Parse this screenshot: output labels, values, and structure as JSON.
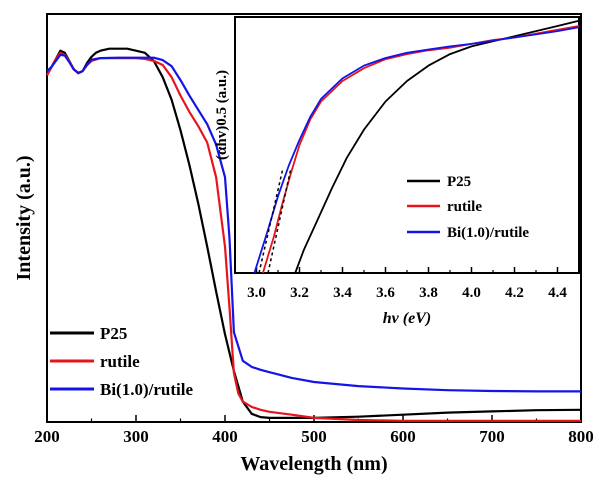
{
  "chart_data": [
    {
      "type": "line",
      "xlabel": "Wavelength (nm)",
      "ylabel": "Intensity (a.u.)",
      "xlim": [
        200,
        800
      ],
      "ylim": [
        0,
        1
      ],
      "xticks": [
        200,
        300,
        400,
        500,
        600,
        700,
        800
      ],
      "grid": false,
      "legend_position": "bottom-left",
      "series": [
        {
          "name": "P25",
          "color": "#000000",
          "points": [
            [
              200,
              0.85
            ],
            [
              205,
              0.87
            ],
            [
              210,
              0.89
            ],
            [
              215,
              0.91
            ],
            [
              220,
              0.905
            ],
            [
              225,
              0.885
            ],
            [
              230,
              0.865
            ],
            [
              235,
              0.855
            ],
            [
              240,
              0.86
            ],
            [
              245,
              0.88
            ],
            [
              250,
              0.895
            ],
            [
              255,
              0.905
            ],
            [
              260,
              0.91
            ],
            [
              270,
              0.915
            ],
            [
              280,
              0.915
            ],
            [
              290,
              0.915
            ],
            [
              300,
              0.91
            ],
            [
              310,
              0.905
            ],
            [
              320,
              0.885
            ],
            [
              330,
              0.845
            ],
            [
              340,
              0.79
            ],
            [
              350,
              0.715
            ],
            [
              360,
              0.63
            ],
            [
              370,
              0.535
            ],
            [
              380,
              0.43
            ],
            [
              390,
              0.32
            ],
            [
              400,
              0.215
            ],
            [
              410,
              0.125
            ],
            [
              420,
              0.05
            ],
            [
              430,
              0.02
            ],
            [
              440,
              0.012
            ],
            [
              450,
              0.01
            ],
            [
              470,
              0.01
            ],
            [
              500,
              0.01
            ],
            [
              550,
              0.013
            ],
            [
              600,
              0.018
            ],
            [
              650,
              0.023
            ],
            [
              700,
              0.026
            ],
            [
              750,
              0.029
            ],
            [
              800,
              0.03
            ]
          ]
        },
        {
          "name": "rutile",
          "color": "#e8141c",
          "points": [
            [
              200,
              0.85
            ],
            [
              205,
              0.87
            ],
            [
              210,
              0.89
            ],
            [
              215,
              0.905
            ],
            [
              220,
              0.9
            ],
            [
              225,
              0.885
            ],
            [
              230,
              0.865
            ],
            [
              235,
              0.855
            ],
            [
              240,
              0.86
            ],
            [
              245,
              0.875
            ],
            [
              250,
              0.885
            ],
            [
              260,
              0.892
            ],
            [
              280,
              0.892
            ],
            [
              300,
              0.892
            ],
            [
              310,
              0.89
            ],
            [
              320,
              0.885
            ],
            [
              330,
              0.875
            ],
            [
              340,
              0.845
            ],
            [
              350,
              0.8
            ],
            [
              360,
              0.76
            ],
            [
              370,
              0.725
            ],
            [
              380,
              0.685
            ],
            [
              390,
              0.6
            ],
            [
              400,
              0.43
            ],
            [
              405,
              0.28
            ],
            [
              410,
              0.12
            ],
            [
              415,
              0.07
            ],
            [
              420,
              0.05
            ],
            [
              430,
              0.037
            ],
            [
              440,
              0.03
            ],
            [
              450,
              0.025
            ],
            [
              475,
              0.018
            ],
            [
              500,
              0.01
            ],
            [
              550,
              0.005
            ],
            [
              600,
              0.003
            ],
            [
              650,
              0.003
            ],
            [
              700,
              0.003
            ],
            [
              750,
              0.003
            ],
            [
              800,
              0.003
            ]
          ]
        },
        {
          "name": "Bi(1.0)/rutile",
          "color": "#1414e8",
          "points": [
            [
              200,
              0.86
            ],
            [
              205,
              0.87
            ],
            [
              210,
              0.885
            ],
            [
              215,
              0.9
            ],
            [
              220,
              0.898
            ],
            [
              225,
              0.882
            ],
            [
              230,
              0.864
            ],
            [
              235,
              0.856
            ],
            [
              240,
              0.86
            ],
            [
              245,
              0.875
            ],
            [
              250,
              0.888
            ],
            [
              260,
              0.892
            ],
            [
              280,
              0.893
            ],
            [
              300,
              0.893
            ],
            [
              320,
              0.893
            ],
            [
              330,
              0.887
            ],
            [
              340,
              0.872
            ],
            [
              350,
              0.838
            ],
            [
              360,
              0.8
            ],
            [
              370,
              0.765
            ],
            [
              380,
              0.73
            ],
            [
              390,
              0.68
            ],
            [
              400,
              0.6
            ],
            [
              405,
              0.45
            ],
            [
              410,
              0.22
            ],
            [
              420,
              0.15
            ],
            [
              430,
              0.135
            ],
            [
              440,
              0.128
            ],
            [
              450,
              0.122
            ],
            [
              475,
              0.108
            ],
            [
              500,
              0.098
            ],
            [
              550,
              0.088
            ],
            [
              600,
              0.082
            ],
            [
              650,
              0.078
            ],
            [
              700,
              0.076
            ],
            [
              750,
              0.075
            ],
            [
              800,
              0.075
            ]
          ]
        }
      ]
    },
    {
      "type": "line",
      "xlabel": "hv (eV)",
      "ylabel": "(αhv)0.5 (a.u.)",
      "xlim": [
        2.9,
        4.5
      ],
      "ylim": [
        0,
        1
      ],
      "xticks": [
        3.0,
        3.2,
        3.4,
        3.6,
        3.8,
        4.0,
        4.2,
        4.4
      ],
      "grid": false,
      "legend_position": "center-right",
      "series": [
        {
          "name": "P25",
          "color": "#000000",
          "points": [
            [
              3.18,
              0.0
            ],
            [
              3.22,
              0.09
            ],
            [
              3.28,
              0.2
            ],
            [
              3.35,
              0.33
            ],
            [
              3.42,
              0.45
            ],
            [
              3.5,
              0.56
            ],
            [
              3.6,
              0.67
            ],
            [
              3.7,
              0.75
            ],
            [
              3.8,
              0.81
            ],
            [
              3.9,
              0.855
            ],
            [
              4.0,
              0.885
            ],
            [
              4.1,
              0.905
            ],
            [
              4.2,
              0.925
            ],
            [
              4.3,
              0.945
            ],
            [
              4.4,
              0.965
            ],
            [
              4.5,
              0.985
            ]
          ]
        },
        {
          "name": "rutile",
          "color": "#e8141c",
          "points": [
            [
              3.03,
              0.0
            ],
            [
              3.08,
              0.14
            ],
            [
              3.12,
              0.27
            ],
            [
              3.16,
              0.39
            ],
            [
              3.2,
              0.5
            ],
            [
              3.25,
              0.6
            ],
            [
              3.3,
              0.67
            ],
            [
              3.4,
              0.75
            ],
            [
              3.5,
              0.8
            ],
            [
              3.6,
              0.835
            ],
            [
              3.7,
              0.855
            ],
            [
              3.8,
              0.87
            ],
            [
              3.9,
              0.88
            ],
            [
              4.0,
              0.895
            ],
            [
              4.1,
              0.91
            ],
            [
              4.2,
              0.92
            ],
            [
              4.3,
              0.935
            ],
            [
              4.4,
              0.95
            ],
            [
              4.5,
              0.965
            ]
          ]
        },
        {
          "name": "Bi(1.0)/rutile",
          "color": "#1414e8",
          "points": [
            [
              2.99,
              0.0
            ],
            [
              3.05,
              0.16
            ],
            [
              3.1,
              0.3
            ],
            [
              3.15,
              0.42
            ],
            [
              3.2,
              0.52
            ],
            [
              3.25,
              0.61
            ],
            [
              3.3,
              0.68
            ],
            [
              3.4,
              0.76
            ],
            [
              3.5,
              0.81
            ],
            [
              3.6,
              0.84
            ],
            [
              3.7,
              0.86
            ],
            [
              3.8,
              0.873
            ],
            [
              3.9,
              0.885
            ],
            [
              4.0,
              0.895
            ],
            [
              4.1,
              0.908
            ],
            [
              4.2,
              0.92
            ],
            [
              4.3,
              0.932
            ],
            [
              4.4,
              0.945
            ],
            [
              4.5,
              0.96
            ]
          ]
        }
      ]
    }
  ]
}
